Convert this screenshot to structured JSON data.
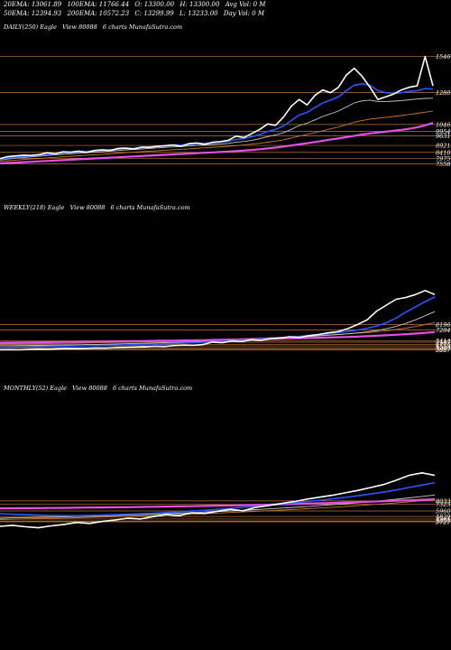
{
  "header": {
    "line1": [
      "20EMA: 13061.89",
      "100EMA: 11766.44",
      "O: 13300.00",
      "H: 13300.00",
      "Avg Vol: 0  M"
    ],
    "line2": [
      "50EMA: 12394.93",
      "200EMA: 10572.23",
      "C: 13299.99",
      "L: 13233.00",
      "Day Vol: 0  M"
    ]
  },
  "colors": {
    "background": "#000000",
    "price": "#ffffff",
    "ema_short": "#2a55ff",
    "ema_long": "#e54fe5",
    "ema_mid": "#c8c8c8",
    "ema_orange": "#c77a2a",
    "hline": "#b8743a"
  },
  "chart_data": [
    {
      "type": "line",
      "panel": "daily",
      "title_parts": [
        "DAILY(250) Eagle",
        "View  80088",
        "6  charts MunafaSutra.com"
      ],
      "ylim": [
        7000,
        15500
      ],
      "ticks": [
        "15461",
        "12801",
        "10461",
        "9954",
        "9631",
        "8921",
        "8410",
        "7975",
        "7558"
      ],
      "tick_values": [
        15461,
        12801,
        10461,
        9954,
        9631,
        8921,
        8410,
        7975,
        7558
      ],
      "x_count": 250,
      "series": [
        {
          "role": "price",
          "values": [
            7950,
            8100,
            8150,
            8200,
            8180,
            8250,
            8380,
            8300,
            8450,
            8420,
            8500,
            8400,
            8550,
            8600,
            8550,
            8700,
            8720,
            8650,
            8800,
            8780,
            8850,
            8900,
            8950,
            8850,
            9050,
            9100,
            9000,
            9150,
            9200,
            9300,
            9600,
            9500,
            9800,
            10100,
            10500,
            10400,
            11000,
            11800,
            12300,
            11900,
            12600,
            13000,
            12800,
            13200,
            14100,
            14600,
            14000,
            13200,
            12300,
            12500,
            12700,
            13000,
            13200,
            13300,
            15461,
            13299
          ]
        },
        {
          "role": "ema_short",
          "values": [
            7900,
            8000,
            8050,
            8100,
            8150,
            8200,
            8260,
            8300,
            8360,
            8400,
            8450,
            8480,
            8520,
            8560,
            8600,
            8640,
            8690,
            8720,
            8770,
            8810,
            8850,
            8890,
            8930,
            8960,
            9000,
            9050,
            9080,
            9120,
            9170,
            9230,
            9350,
            9420,
            9560,
            9720,
            9950,
            10100,
            10350,
            10750,
            11150,
            11350,
            11700,
            12050,
            12250,
            12500,
            12950,
            13350,
            13450,
            13350,
            12950,
            12800,
            12750,
            12800,
            12900,
            12950,
            13100,
            13062
          ]
        },
        {
          "role": "ema_mid",
          "values": [
            7850,
            7920,
            7980,
            8030,
            8080,
            8130,
            8180,
            8220,
            8270,
            8310,
            8350,
            8390,
            8430,
            8470,
            8510,
            8550,
            8590,
            8620,
            8660,
            8700,
            8740,
            8780,
            8810,
            8840,
            8880,
            8920,
            8950,
            8990,
            9030,
            9070,
            9150,
            9210,
            9300,
            9420,
            9570,
            9690,
            9850,
            10100,
            10380,
            10550,
            10800,
            11050,
            11250,
            11450,
            11750,
            12050,
            12200,
            12250,
            12150,
            12150,
            12180,
            12220,
            12280,
            12330,
            12380,
            12395
          ]
        },
        {
          "role": "ema_orange",
          "values": [
            7750,
            7800,
            7840,
            7880,
            7920,
            7960,
            8000,
            8040,
            8080,
            8120,
            8160,
            8200,
            8240,
            8270,
            8310,
            8350,
            8390,
            8420,
            8460,
            8500,
            8530,
            8570,
            8600,
            8640,
            8670,
            8710,
            8740,
            8780,
            8810,
            8850,
            8900,
            8950,
            9010,
            9080,
            9160,
            9240,
            9330,
            9460,
            9600,
            9720,
            9860,
            10000,
            10140,
            10280,
            10440,
            10620,
            10760,
            10860,
            10920,
            10980,
            11050,
            11120,
            11200,
            11280,
            11360,
            11440
          ]
        },
        {
          "role": "ema_long",
          "values": [
            7600,
            7630,
            7660,
            7690,
            7720,
            7750,
            7780,
            7810,
            7840,
            7870,
            7900,
            7930,
            7960,
            7990,
            8020,
            8050,
            8080,
            8110,
            8140,
            8170,
            8200,
            8230,
            8260,
            8290,
            8320,
            8350,
            8380,
            8410,
            8440,
            8470,
            8510,
            8550,
            8590,
            8640,
            8700,
            8760,
            8830,
            8910,
            9000,
            9080,
            9170,
            9260,
            9350,
            9440,
            9530,
            9630,
            9720,
            9800,
            9870,
            9930,
            10000,
            10070,
            10150,
            10250,
            10400,
            10572
          ]
        }
      ]
    },
    {
      "type": "line",
      "panel": "weekly",
      "title_parts": [
        "WEEKLY(218) Eagle",
        "View  80088",
        "6  charts MunafaSutra.com"
      ],
      "ylim": [
        3500,
        15500
      ],
      "ticks": [
        "8196",
        "7284",
        "5414",
        "5187",
        "4776",
        "4553",
        "4208",
        "3957",
        "3887"
      ],
      "tick_values": [
        8196,
        7284,
        5414,
        5187,
        4776,
        4553,
        4208,
        3957,
        3887
      ],
      "x_count": 218,
      "series": [
        {
          "role": "price",
          "values": [
            3900,
            3920,
            3880,
            3950,
            4000,
            3980,
            4050,
            4100,
            4080,
            4150,
            4200,
            4180,
            4250,
            4300,
            4350,
            4400,
            4500,
            4450,
            4600,
            4700,
            4650,
            4800,
            5200,
            5100,
            5400,
            5300,
            5600,
            5500,
            5800,
            5900,
            6100,
            6000,
            6300,
            6500,
            6800,
            7000,
            7500,
            8200,
            9000,
            10500,
            11500,
            12500,
            12800,
            13300,
            14000,
            13300
          ]
        },
        {
          "role": "ema_short",
          "values": [
            4300,
            4320,
            4340,
            4360,
            4390,
            4420,
            4450,
            4480,
            4520,
            4560,
            4600,
            4640,
            4680,
            4720,
            4770,
            4820,
            4870,
            4920,
            4980,
            5040,
            5100,
            5170,
            5250,
            5330,
            5420,
            5510,
            5610,
            5710,
            5820,
            5940,
            6060,
            6190,
            6330,
            6480,
            6640,
            6820,
            7020,
            7260,
            7560,
            7950,
            8500,
            9300,
            10300,
            11200,
            12100,
            12900
          ]
        },
        {
          "role": "ema_mid",
          "values": [
            4600,
            4610,
            4620,
            4640,
            4660,
            4680,
            4700,
            4730,
            4760,
            4790,
            4820,
            4850,
            4890,
            4930,
            4970,
            5010,
            5050,
            5100,
            5150,
            5200,
            5250,
            5310,
            5370,
            5430,
            5500,
            5570,
            5640,
            5720,
            5800,
            5880,
            5970,
            6060,
            6160,
            6260,
            6370,
            6490,
            6620,
            6770,
            6950,
            7180,
            7480,
            7880,
            8400,
            9000,
            9700,
            10400
          ]
        },
        {
          "role": "ema_orange",
          "values": [
            4900,
            4910,
            4920,
            4930,
            4950,
            4970,
            4990,
            5010,
            5040,
            5070,
            5100,
            5130,
            5160,
            5190,
            5230,
            5270,
            5310,
            5350,
            5390,
            5440,
            5490,
            5540,
            5590,
            5640,
            5700,
            5760,
            5820,
            5880,
            5950,
            6020,
            6090,
            6160,
            6240,
            6320,
            6410,
            6500,
            6600,
            6710,
            6830,
            6970,
            7140,
            7340,
            7580,
            7860,
            8180,
            8540
          ]
        },
        {
          "role": "ema_long",
          "values": [
            5100,
            5120,
            5140,
            5160,
            5180,
            5200,
            5220,
            5240,
            5260,
            5280,
            5300,
            5320,
            5340,
            5360,
            5380,
            5400,
            5420,
            5440,
            5460,
            5480,
            5500,
            5530,
            5560,
            5590,
            5620,
            5650,
            5680,
            5710,
            5740,
            5780,
            5820,
            5860,
            5900,
            5940,
            5990,
            6040,
            6090,
            6150,
            6210,
            6280,
            6360,
            6450,
            6550,
            6660,
            6780,
            6920
          ]
        }
      ]
    },
    {
      "type": "line",
      "panel": "monthly",
      "title_parts": [
        "MONTHLY(52) Eagle",
        "View  80088",
        "6  charts MunafaSutra.com"
      ],
      "ylim": [
        1500,
        16000
      ],
      "ticks": [
        "8033",
        "7323",
        "5960",
        "4829",
        "4301",
        "3899",
        "3727"
      ],
      "tick_values": [
        8033,
        7323,
        5960,
        4829,
        4301,
        3899,
        3727
      ],
      "x_count": 52,
      "series": [
        {
          "role": "price",
          "values": [
            2800,
            3000,
            2700,
            2500,
            2900,
            3200,
            3600,
            3400,
            3800,
            4100,
            4500,
            4300,
            4800,
            5200,
            5000,
            5600,
            5400,
            5900,
            6300,
            6000,
            6700,
            7100,
            7500,
            7900,
            8400,
            8800,
            9200,
            9700,
            10200,
            10800,
            11400,
            12300,
            13300,
            13800,
            13300
          ]
        },
        {
          "role": "ema_short",
          "values": [
            5400,
            5300,
            5200,
            5100,
            5050,
            5000,
            5000,
            5050,
            5100,
            5200,
            5300,
            5400,
            5500,
            5650,
            5800,
            5950,
            6100,
            6300,
            6500,
            6700,
            6900,
            7150,
            7400,
            7650,
            7900,
            8150,
            8450,
            8750,
            9100,
            9450,
            9850,
            10300,
            10800,
            11300,
            11800
          ]
        },
        {
          "role": "ema_mid",
          "values": [
            4500,
            4550,
            4600,
            4650,
            4700,
            4760,
            4820,
            4890,
            4960,
            5040,
            5120,
            5210,
            5300,
            5400,
            5500,
            5610,
            5720,
            5840,
            5970,
            6100,
            6240,
            6390,
            6550,
            6710,
            6880,
            7060,
            7250,
            7450,
            7660,
            7880,
            8120,
            8380,
            8660,
            8950,
            9260
          ]
        },
        {
          "role": "ema_orange",
          "values": [
            4200,
            4260,
            4320,
            4380,
            4440,
            4500,
            4570,
            4640,
            4710,
            4790,
            4870,
            4950,
            5040,
            5130,
            5220,
            5320,
            5420,
            5530,
            5640,
            5760,
            5880,
            6010,
            6140,
            6280,
            6420,
            6570,
            6730,
            6890,
            7060,
            7240,
            7430,
            7630,
            7840,
            8060,
            8290
          ]
        },
        {
          "role": "ema_long",
          "values": [
            6500,
            6520,
            6540,
            6560,
            6580,
            6600,
            6630,
            6660,
            6690,
            6720,
            6750,
            6790,
            6830,
            6870,
            6910,
            6950,
            7000,
            7050,
            7100,
            7150,
            7210,
            7270,
            7330,
            7400,
            7470,
            7540,
            7620,
            7700,
            7780,
            7870,
            7960,
            8060,
            8160,
            8270,
            8380
          ]
        }
      ]
    }
  ]
}
